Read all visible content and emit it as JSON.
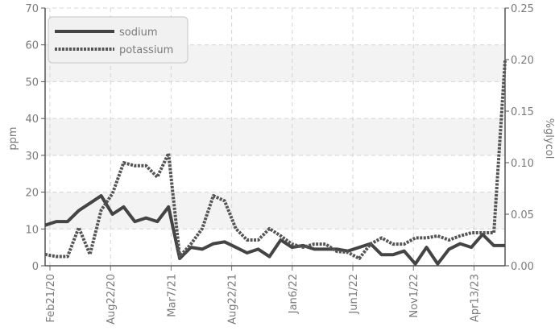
{
  "chart_data": {
    "type": "line",
    "x_ticks": [
      "Feb21/20",
      "Aug22/20",
      "Mar7/21",
      "Aug22/21",
      "Jan6/22",
      "Jun1/22",
      "Nov1/22",
      "Apr13/23"
    ],
    "left_axis": {
      "label": "ppm",
      "ticks": [
        "0",
        "10",
        "20",
        "30",
        "40",
        "50",
        "60",
        "70"
      ],
      "range": [
        0,
        70
      ]
    },
    "right_axis": {
      "label": "%glycol",
      "ticks": [
        "0.00",
        "0.05",
        "0.10",
        "0.15",
        "0.20",
        "0.25"
      ],
      "range": [
        0,
        0.25
      ]
    },
    "grid": true,
    "legend": {
      "position": "top-left"
    },
    "series": [
      {
        "name": "sodium",
        "axis": "left",
        "style": "solid",
        "color": "#444444",
        "x": [
          0,
          1,
          2,
          3,
          4,
          5,
          6,
          7,
          8,
          9,
          10,
          11,
          12,
          13,
          14,
          15,
          16,
          17,
          18,
          19,
          20,
          21,
          22,
          23,
          24,
          25,
          26,
          27,
          28,
          29,
          30,
          31,
          32,
          33,
          34,
          35,
          36,
          37,
          38,
          39,
          40,
          41
        ],
        "values": [
          11,
          12,
          12,
          15,
          17,
          19,
          14,
          16,
          12,
          13,
          12,
          16,
          2,
          5,
          4.5,
          6,
          6.5,
          5,
          3.5,
          4.5,
          2.5,
          7,
          5,
          5.5,
          4.5,
          4.5,
          4.5,
          4,
          5,
          6,
          3,
          3,
          4,
          0.5,
          5,
          0.5,
          4.5,
          6,
          5,
          8.5,
          5.5,
          5.5
        ]
      },
      {
        "name": "potassium",
        "axis": "right",
        "style": "dotted",
        "color": "#555555",
        "x": [
          0,
          1,
          2,
          3,
          4,
          5,
          6,
          7,
          8,
          9,
          10,
          11,
          12,
          13,
          14,
          15,
          16,
          17,
          18,
          19,
          20,
          21,
          22,
          23,
          24,
          25,
          26,
          27,
          28,
          29,
          30,
          31,
          32,
          33,
          34,
          35,
          36,
          37,
          38,
          39,
          40,
          41
        ],
        "values": [
          0.011,
          0.009,
          0.009,
          0.037,
          0.011,
          0.054,
          0.07,
          0.1,
          0.097,
          0.097,
          0.086,
          0.109,
          0.009,
          0.021,
          0.036,
          0.068,
          0.063,
          0.036,
          0.025,
          0.025,
          0.036,
          0.029,
          0.021,
          0.018,
          0.021,
          0.021,
          0.014,
          0.013,
          0.007,
          0.021,
          0.027,
          0.021,
          0.021,
          0.027,
          0.027,
          0.029,
          0.025,
          0.029,
          0.032,
          0.032,
          0.032,
          0.199
        ]
      }
    ]
  }
}
